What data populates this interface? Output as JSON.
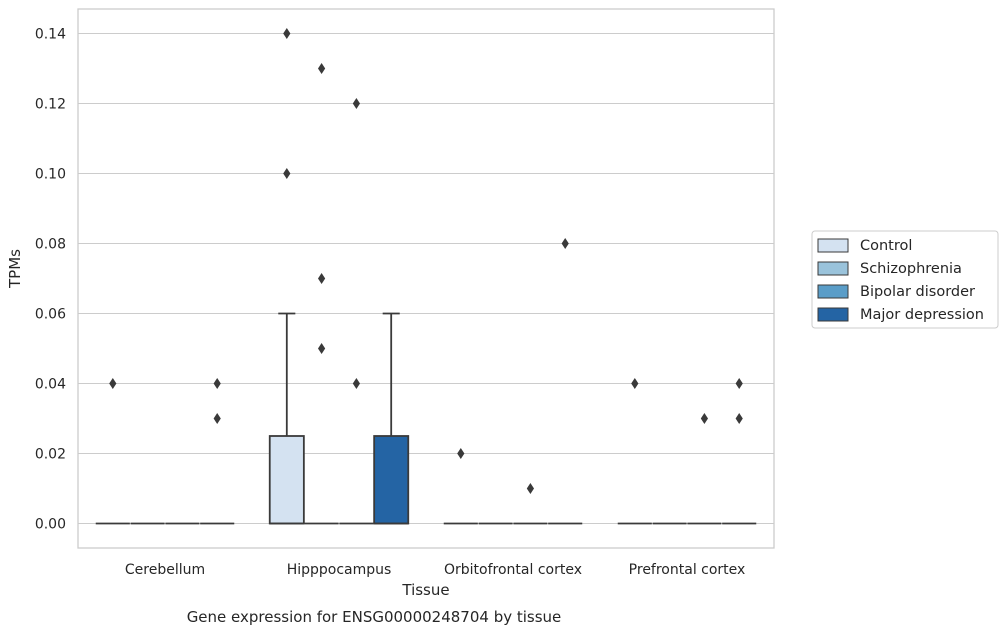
{
  "chart_data": {
    "type": "box",
    "title": "",
    "xlabel": "Tissue",
    "ylabel": "TPMs",
    "caption": "Gene expression for ENSG00000248704 by tissue",
    "ylim": [
      -0.007,
      0.147
    ],
    "yticks": [
      0.0,
      0.02,
      0.04,
      0.06,
      0.08,
      0.1,
      0.12,
      0.14
    ],
    "ytick_labels": [
      "0.00",
      "0.02",
      "0.04",
      "0.06",
      "0.08",
      "0.10",
      "0.12",
      "0.14"
    ],
    "grid": true,
    "legend_position": "right",
    "categories": [
      "Cerebellum",
      "Hipppocampus",
      "Orbitofrontal cortex",
      "Prefrontal cortex"
    ],
    "series": [
      {
        "name": "Control",
        "color": "#d4e2f1",
        "boxes": [
          {
            "q1": 0,
            "median": 0,
            "q3": 0,
            "whislo": 0,
            "whishi": 0,
            "fliers": [
              0.04
            ]
          },
          {
            "q1": 0,
            "median": 0,
            "q3": 0.025,
            "whislo": 0,
            "whishi": 0.06,
            "fliers": [
              0.14,
              0.1
            ]
          },
          {
            "q1": 0,
            "median": 0,
            "q3": 0,
            "whislo": 0,
            "whishi": 0,
            "fliers": [
              0.02
            ]
          },
          {
            "q1": 0,
            "median": 0,
            "q3": 0,
            "whislo": 0,
            "whishi": 0,
            "fliers": [
              0.04
            ]
          }
        ]
      },
      {
        "name": "Schizophrenia",
        "color": "#9ac3db",
        "boxes": [
          {
            "q1": 0,
            "median": 0,
            "q3": 0,
            "whislo": 0,
            "whishi": 0,
            "fliers": []
          },
          {
            "q1": 0,
            "median": 0,
            "q3": 0,
            "whislo": 0,
            "whishi": 0,
            "fliers": [
              0.13,
              0.07,
              0.05
            ]
          },
          {
            "q1": 0,
            "median": 0,
            "q3": 0,
            "whislo": 0,
            "whishi": 0,
            "fliers": []
          },
          {
            "q1": 0,
            "median": 0,
            "q3": 0,
            "whislo": 0,
            "whishi": 0,
            "fliers": []
          }
        ]
      },
      {
        "name": "Bipolar disorder",
        "color": "#5a9dc8",
        "boxes": [
          {
            "q1": 0,
            "median": 0,
            "q3": 0,
            "whislo": 0,
            "whishi": 0,
            "fliers": []
          },
          {
            "q1": 0,
            "median": 0,
            "q3": 0,
            "whislo": 0,
            "whishi": 0,
            "fliers": [
              0.12,
              0.04
            ]
          },
          {
            "q1": 0,
            "median": 0,
            "q3": 0,
            "whislo": 0,
            "whishi": 0,
            "fliers": [
              0.01
            ]
          },
          {
            "q1": 0,
            "median": 0,
            "q3": 0,
            "whislo": 0,
            "whishi": 0,
            "fliers": [
              0.03
            ]
          }
        ]
      },
      {
        "name": "Major depression",
        "color": "#2464a4",
        "boxes": [
          {
            "q1": 0,
            "median": 0,
            "q3": 0,
            "whislo": 0,
            "whishi": 0,
            "fliers": [
              0.04,
              0.03
            ]
          },
          {
            "q1": 0,
            "median": 0,
            "q3": 0.025,
            "whislo": 0,
            "whishi": 0.06,
            "fliers": []
          },
          {
            "q1": 0,
            "median": 0,
            "q3": 0,
            "whislo": 0,
            "whishi": 0,
            "fliers": [
              0.08
            ]
          },
          {
            "q1": 0,
            "median": 0,
            "q3": 0,
            "whislo": 0,
            "whishi": 0,
            "fliers": [
              0.04,
              0.03
            ]
          }
        ]
      }
    ]
  }
}
